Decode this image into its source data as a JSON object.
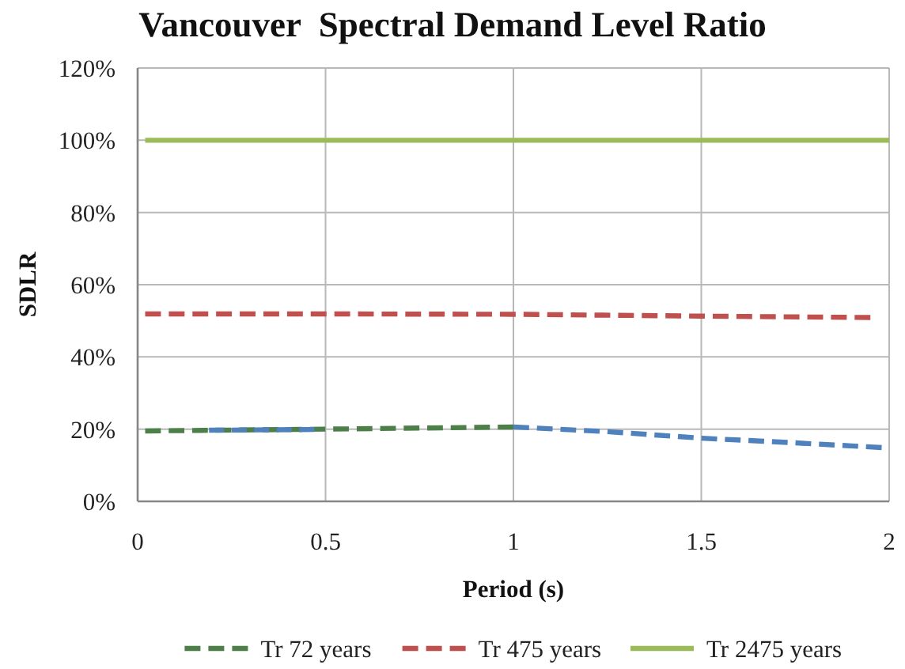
{
  "chart_data": {
    "type": "line",
    "title": "Vancouver  Spectral Demand Level Ratio",
    "xlabel": "Period (s)",
    "ylabel": "SDLR",
    "xlim": [
      0,
      2
    ],
    "xticks": [
      0,
      0.5,
      1,
      1.5,
      2
    ],
    "ylim": [
      0,
      120
    ],
    "yticks": [
      {
        "value": 0,
        "label": "0%"
      },
      {
        "value": 20,
        "label": "20%"
      },
      {
        "value": 40,
        "label": "40%"
      },
      {
        "value": 60,
        "label": "60%"
      },
      {
        "value": 80,
        "label": "80%"
      },
      {
        "value": 100,
        "label": "100%"
      },
      {
        "value": 120,
        "label": "120%"
      }
    ],
    "grid": true,
    "legend": "bottom",
    "series": [
      {
        "name": "Tr 72 years",
        "color": "#4d8049",
        "line_style": "dashed",
        "x": [
          0.02,
          0.5,
          1
        ],
        "values": [
          19.5,
          20,
          20.6
        ]
      },
      {
        "name": "Tr 475 years",
        "color": "#c0504d",
        "line_style": "dashed",
        "x": [
          0.02,
          0.5,
          1,
          1.5,
          1.95
        ],
        "values": [
          51.9,
          51.9,
          51.8,
          51.3,
          50.9
        ]
      },
      {
        "name": "Tr 2475 years",
        "color": "#9bbb59",
        "line_style": "solid",
        "x": [
          0.02,
          2
        ],
        "values": [
          100,
          100
        ]
      },
      {
        "color": "#4f81bd",
        "line_style": "dashed",
        "x": [
          0.19,
          0.47
        ],
        "values": [
          19.7,
          19.9
        ]
      },
      {
        "color": "#4f81bd",
        "line_style": "dashed",
        "x": [
          1,
          1.25,
          1.5,
          1.75,
          1.98
        ],
        "values": [
          20.6,
          19.3,
          17.5,
          16.2,
          14.9
        ]
      }
    ]
  }
}
